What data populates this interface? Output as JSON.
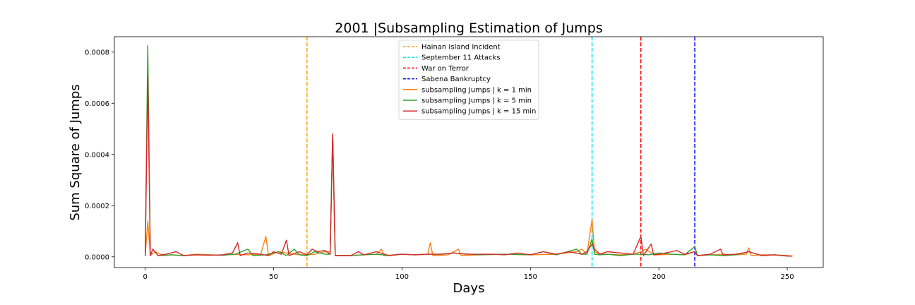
{
  "chart_data": {
    "type": "line",
    "title": "2001 |Subsampling Estimation of Jumps",
    "xlabel": "Days",
    "ylabel": "Sum Square of Jumps",
    "xlim": [
      -12,
      264
    ],
    "ylim": [
      -4.2e-05,
      0.00086
    ],
    "xticks": [
      0,
      50,
      100,
      150,
      200,
      250
    ],
    "xtick_labels": [
      "0",
      "50",
      "100",
      "150",
      "200",
      "250"
    ],
    "yticks": [
      0.0,
      0.0002,
      0.0004,
      0.0006,
      0.0008
    ],
    "ytick_labels": [
      "0.0000",
      "0.0002",
      "0.0004",
      "0.0006",
      "0.0008"
    ],
    "legend_position": "top-center",
    "grid": false,
    "events": [
      {
        "name": "Hainan Island Incident",
        "x": 63,
        "color": "#ffa500"
      },
      {
        "name": "September 11 Attacks",
        "x": 174,
        "color": "#00e5ee"
      },
      {
        "name": "War on Terror",
        "x": 193,
        "color": "#ff0000"
      },
      {
        "name": "Sabena Bankruptcy",
        "x": 214,
        "color": "#0000ff"
      }
    ],
    "series": [
      {
        "name": "subsampling Jumps | k = 1 min",
        "color": "#ff7f0e",
        "points": [
          [
            0,
            5e-06
          ],
          [
            1,
            0.00014
          ],
          [
            2,
            5e-06
          ],
          [
            4,
            2e-05
          ],
          [
            7,
            5e-06
          ],
          [
            10,
            8e-06
          ],
          [
            15,
            5e-06
          ],
          [
            20,
            1e-05
          ],
          [
            30,
            6e-06
          ],
          [
            35,
            1e-05
          ],
          [
            40,
            8e-06
          ],
          [
            45,
            1e-05
          ],
          [
            47,
            8e-05
          ],
          [
            48,
            5e-06
          ],
          [
            52,
            2e-05
          ],
          [
            55,
            1.5e-05
          ],
          [
            58,
            1e-05
          ],
          [
            63,
            8e-06
          ],
          [
            66,
            1e-05
          ],
          [
            70,
            2e-05
          ],
          [
            72,
            2e-05
          ],
          [
            73,
            0.00048
          ],
          [
            74,
            5e-06
          ],
          [
            80,
            5e-06
          ],
          [
            85,
            8e-06
          ],
          [
            90,
            1e-05
          ],
          [
            92,
            3e-05
          ],
          [
            93,
            5e-06
          ],
          [
            100,
            1e-05
          ],
          [
            105,
            8e-06
          ],
          [
            110,
            1e-05
          ],
          [
            111,
            5.5e-05
          ],
          [
            112,
            5e-06
          ],
          [
            118,
            8e-06
          ],
          [
            122,
            3e-05
          ],
          [
            123,
            5e-06
          ],
          [
            130,
            8e-06
          ],
          [
            140,
            1e-05
          ],
          [
            150,
            8e-06
          ],
          [
            160,
            1e-05
          ],
          [
            168,
            2e-05
          ],
          [
            170,
            3e-05
          ],
          [
            172,
            1e-05
          ],
          [
            174,
            0.000145
          ],
          [
            175,
            2e-05
          ],
          [
            177,
            1e-05
          ],
          [
            180,
            1e-05
          ],
          [
            185,
            8e-06
          ],
          [
            190,
            1e-05
          ],
          [
            193,
            2e-05
          ],
          [
            195,
            3e-05
          ],
          [
            198,
            8e-06
          ],
          [
            200,
            8e-06
          ],
          [
            205,
            1e-05
          ],
          [
            210,
            8e-06
          ],
          [
            214,
            2e-05
          ],
          [
            215,
            5e-06
          ],
          [
            220,
            8e-06
          ],
          [
            225,
            1e-05
          ],
          [
            230,
            8e-06
          ],
          [
            234,
            1e-05
          ],
          [
            235,
            3.5e-05
          ],
          [
            236,
            5e-06
          ],
          [
            240,
            8e-06
          ],
          [
            245,
            8e-06
          ],
          [
            250,
            5e-06
          ],
          [
            252,
            3e-06
          ]
        ]
      },
      {
        "name": "subsampling Jumps | k = 5 min",
        "color": "#2ca02c",
        "points": [
          [
            0,
            3e-06
          ],
          [
            1,
            0.000825
          ],
          [
            2,
            5e-06
          ],
          [
            3,
            3e-05
          ],
          [
            5,
            5e-06
          ],
          [
            10,
            8e-06
          ],
          [
            15,
            5e-06
          ],
          [
            20,
            8e-06
          ],
          [
            30,
            6e-06
          ],
          [
            35,
            1e-05
          ],
          [
            40,
            3e-05
          ],
          [
            42,
            5e-06
          ],
          [
            47,
            8e-06
          ],
          [
            52,
            2e-05
          ],
          [
            55,
            5e-06
          ],
          [
            58,
            3e-05
          ],
          [
            60,
            8e-06
          ],
          [
            63,
            5e-06
          ],
          [
            66,
            2e-05
          ],
          [
            70,
            1e-05
          ],
          [
            72,
            1e-05
          ],
          [
            73,
            0.00048
          ],
          [
            74,
            5e-06
          ],
          [
            80,
            5e-06
          ],
          [
            85,
            8e-06
          ],
          [
            90,
            1e-05
          ],
          [
            95,
            5e-06
          ],
          [
            100,
            1e-05
          ],
          [
            105,
            8e-06
          ],
          [
            110,
            1e-05
          ],
          [
            115,
            1e-05
          ],
          [
            120,
            1.5e-05
          ],
          [
            130,
            8e-06
          ],
          [
            140,
            1e-05
          ],
          [
            150,
            8e-06
          ],
          [
            155,
            2e-05
          ],
          [
            160,
            8e-06
          ],
          [
            168,
            3e-05
          ],
          [
            170,
            1e-05
          ],
          [
            172,
            1e-05
          ],
          [
            174,
            7e-05
          ],
          [
            175,
            1e-05
          ],
          [
            177,
            8e-06
          ],
          [
            180,
            1e-05
          ],
          [
            185,
            5e-06
          ],
          [
            190,
            1e-05
          ],
          [
            193,
            1e-05
          ],
          [
            196,
            8e-06
          ],
          [
            200,
            1.5e-05
          ],
          [
            205,
            1e-05
          ],
          [
            210,
            8e-06
          ],
          [
            214,
            4e-05
          ],
          [
            215,
            5e-06
          ],
          [
            220,
            8e-06
          ],
          [
            225,
            5e-06
          ],
          [
            230,
            8e-06
          ],
          [
            235,
            2e-05
          ],
          [
            240,
            5e-06
          ],
          [
            245,
            8e-06
          ],
          [
            250,
            3e-06
          ],
          [
            252,
            3e-06
          ]
        ]
      },
      {
        "name": "subsampling Jumps | k = 15 min",
        "color": "#d62728",
        "points": [
          [
            0,
            3e-06
          ],
          [
            1,
            0.00071
          ],
          [
            2,
            5e-06
          ],
          [
            3,
            3e-05
          ],
          [
            5,
            5e-06
          ],
          [
            8,
            1e-05
          ],
          [
            12,
            2e-05
          ],
          [
            15,
            5e-06
          ],
          [
            20,
            8e-06
          ],
          [
            25,
            6e-06
          ],
          [
            30,
            8e-06
          ],
          [
            34,
            1.5e-05
          ],
          [
            36,
            5.5e-05
          ],
          [
            37,
            5e-06
          ],
          [
            40,
            1.5e-05
          ],
          [
            45,
            1e-05
          ],
          [
            48,
            5e-06
          ],
          [
            50,
            2e-05
          ],
          [
            53,
            1e-05
          ],
          [
            55,
            6.5e-05
          ],
          [
            56,
            5e-06
          ],
          [
            60,
            2e-05
          ],
          [
            63,
            8e-06
          ],
          [
            65,
            3e-05
          ],
          [
            67,
            2e-05
          ],
          [
            70,
            2.5e-05
          ],
          [
            72,
            1e-05
          ],
          [
            73,
            0.00048
          ],
          [
            74,
            5e-06
          ],
          [
            80,
            5e-06
          ],
          [
            83,
            2e-05
          ],
          [
            85,
            8e-06
          ],
          [
            90,
            2e-05
          ],
          [
            95,
            5e-06
          ],
          [
            100,
            1e-05
          ],
          [
            105,
            8e-06
          ],
          [
            110,
            1e-05
          ],
          [
            115,
            1e-05
          ],
          [
            120,
            1.5e-05
          ],
          [
            125,
            1e-05
          ],
          [
            130,
            1e-05
          ],
          [
            135,
            1e-05
          ],
          [
            140,
            8e-06
          ],
          [
            145,
            1.5e-05
          ],
          [
            150,
            8e-06
          ],
          [
            155,
            2e-05
          ],
          [
            160,
            1e-05
          ],
          [
            165,
            2e-05
          ],
          [
            170,
            1e-05
          ],
          [
            172,
            2e-05
          ],
          [
            174,
            5e-05
          ],
          [
            175,
            3e-05
          ],
          [
            177,
            1e-05
          ],
          [
            180,
            2e-05
          ],
          [
            185,
            1.5e-05
          ],
          [
            190,
            1e-05
          ],
          [
            193,
            8e-05
          ],
          [
            194,
            5e-06
          ],
          [
            195,
            2e-05
          ],
          [
            197,
            5e-05
          ],
          [
            198,
            8e-06
          ],
          [
            200,
            1e-05
          ],
          [
            205,
            2e-05
          ],
          [
            207,
            2.5e-05
          ],
          [
            210,
            1e-05
          ],
          [
            214,
            2e-05
          ],
          [
            215,
            5e-06
          ],
          [
            220,
            1e-05
          ],
          [
            224,
            3e-05
          ],
          [
            225,
            8e-06
          ],
          [
            230,
            1e-05
          ],
          [
            235,
            2e-05
          ],
          [
            240,
            5e-06
          ],
          [
            245,
            8e-06
          ],
          [
            250,
            3e-06
          ],
          [
            252,
            3e-06
          ]
        ]
      }
    ]
  }
}
